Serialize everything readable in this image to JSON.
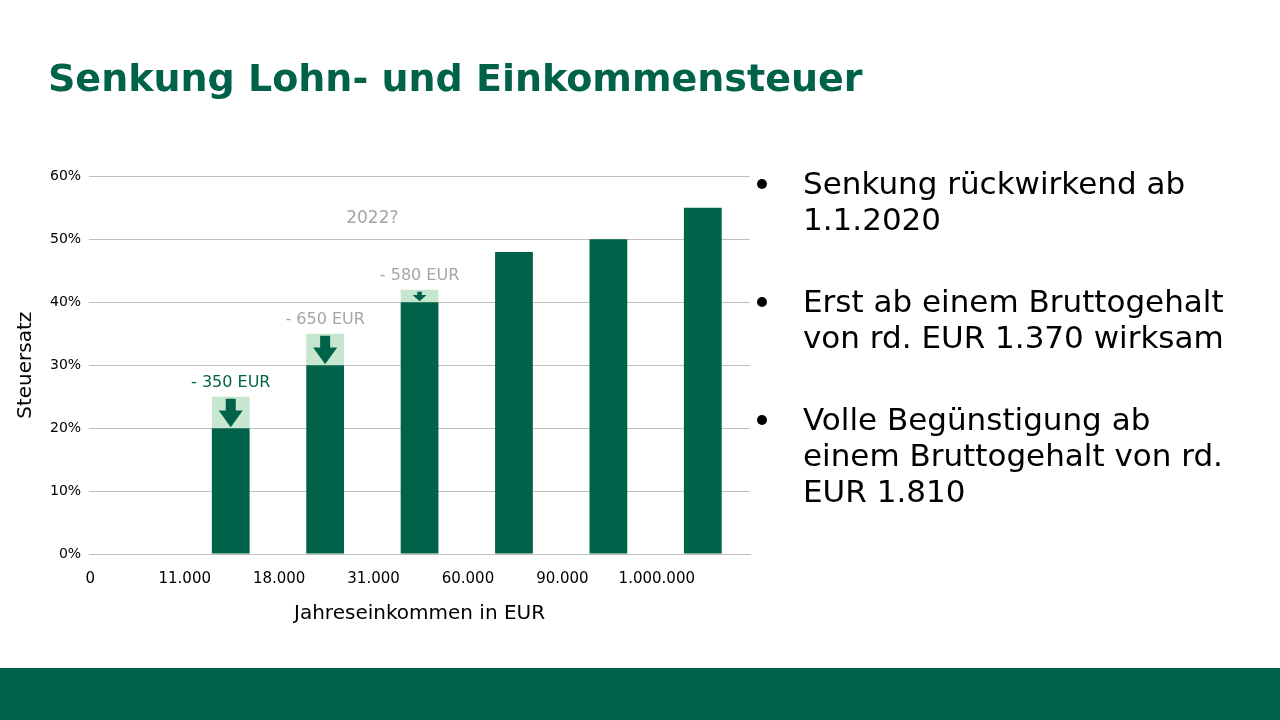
{
  "chart_data": {
    "type": "bar",
    "title": "Senkung Lohn- und Einkommensteuer",
    "xlabel": "Jahreseinkommen in EUR",
    "ylabel": "Steuersatz",
    "categories": [
      "0",
      "11.000",
      "18.000",
      "31.000",
      "60.000",
      "90.000",
      "1.000.000"
    ],
    "stacked": true,
    "series": [
      {
        "color": "#006349",
        "values": [
          null,
          20,
          30,
          40,
          48,
          50,
          55
        ]
      },
      {
        "color": "#c6e6cf",
        "values": [
          null,
          5,
          5,
          2,
          null,
          null,
          null
        ]
      }
    ],
    "ylim": [
      0,
      60
    ],
    "yticks": [
      {
        "value": 0,
        "label": "0%"
      },
      {
        "value": 10,
        "label": "10%"
      },
      {
        "value": 20,
        "label": "20%"
      },
      {
        "value": 30,
        "label": "30%"
      },
      {
        "value": 40,
        "label": "40%"
      },
      {
        "value": 50,
        "label": "50%"
      },
      {
        "value": 60,
        "label": "60%"
      }
    ],
    "grid": "y",
    "legend": false,
    "annotations": [
      "- 350 EUR",
      "- 650 EUR",
      "- 580 EUR",
      "2022?",
      "Senkung rückwirkend ab 1.1.2020",
      "Erst ab einem Bruttogehalt von rd. EUR 1.370 wirksam",
      "Volle Begünstigung ab einem Bruttogehalt von rd. EUR 1.810"
    ]
  }
}
